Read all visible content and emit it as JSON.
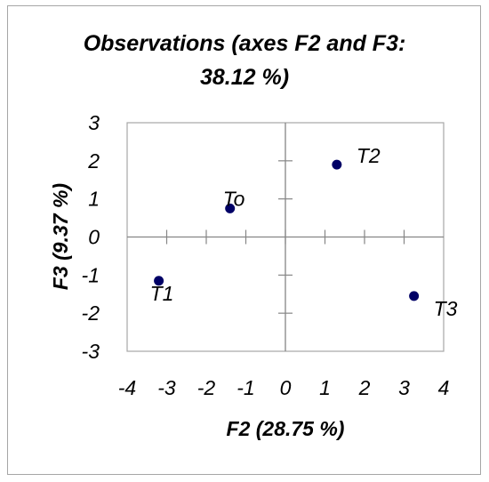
{
  "chart_data": {
    "type": "scatter",
    "title": "Observations (axes F2 and F3: 38.12 %)",
    "title_lines": [
      "Observations (axes F2 and F3:",
      "38.12 %)"
    ],
    "xlabel": "F2 (28.75 %)",
    "ylabel": "F3 (9.37 %)",
    "xlim": [
      -4,
      4
    ],
    "ylim": [
      -3,
      3
    ],
    "xticks": [
      "-4",
      "-3",
      "-2",
      "-1",
      "0",
      "1",
      "2",
      "3",
      "4"
    ],
    "yticks": [
      "3",
      "2",
      "1",
      "0",
      "-1",
      "-2",
      "-3"
    ],
    "grid": false,
    "point_color": "#000066",
    "points": [
      {
        "label": "To",
        "x": -1.4,
        "y": 0.75
      },
      {
        "label": "T1",
        "x": -3.2,
        "y": -1.15
      },
      {
        "label": "T2",
        "x": 1.3,
        "y": 1.9
      },
      {
        "label": "T3",
        "x": 3.25,
        "y": -1.55
      }
    ]
  }
}
